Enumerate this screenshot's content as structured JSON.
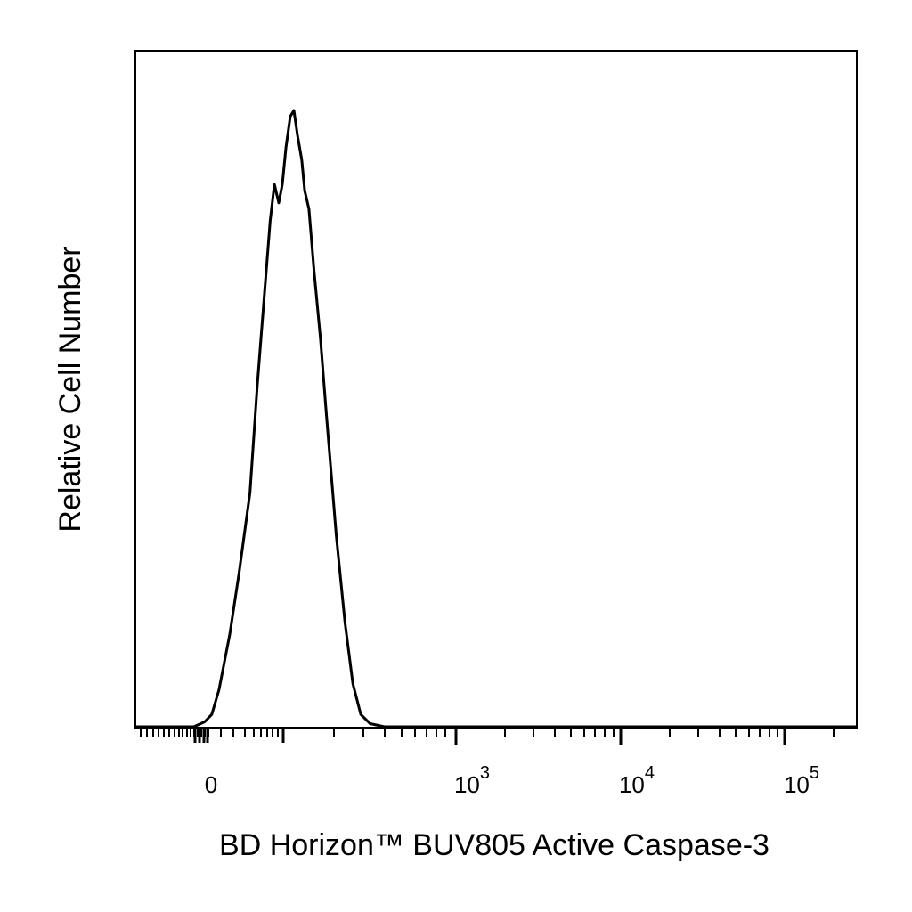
{
  "chart_data": {
    "type": "line",
    "xlabel": "BD Horizon™ BUV805  Active Caspase-3",
    "ylabel": "Relative Cell Number",
    "x_scale": "biexponential",
    "tick_labels": [
      {
        "base": "0",
        "exp": ""
      },
      {
        "base": "10",
        "exp": "3"
      },
      {
        "base": "10",
        "exp": "4"
      },
      {
        "base": "10",
        "exp": "5"
      }
    ],
    "grid": false,
    "legend": "none",
    "line_color": "#000000",
    "series": [
      {
        "note_units": "x in channel fraction of axis range (0-1), y as fraction of peak count",
        "points": [
          [
            0.0,
            0.0
          ],
          [
            0.08,
            0.0
          ],
          [
            0.095,
            0.008
          ],
          [
            0.105,
            0.02
          ],
          [
            0.115,
            0.06
          ],
          [
            0.13,
            0.15
          ],
          [
            0.143,
            0.25
          ],
          [
            0.158,
            0.38
          ],
          [
            0.168,
            0.55
          ],
          [
            0.178,
            0.7
          ],
          [
            0.186,
            0.82
          ],
          [
            0.192,
            0.88
          ],
          [
            0.198,
            0.85
          ],
          [
            0.203,
            0.88
          ],
          [
            0.208,
            0.94
          ],
          [
            0.214,
            0.99
          ],
          [
            0.219,
            1.0
          ],
          [
            0.224,
            0.96
          ],
          [
            0.23,
            0.92
          ],
          [
            0.234,
            0.87
          ],
          [
            0.24,
            0.84
          ],
          [
            0.247,
            0.74
          ],
          [
            0.256,
            0.63
          ],
          [
            0.264,
            0.51
          ],
          [
            0.278,
            0.31
          ],
          [
            0.29,
            0.17
          ],
          [
            0.301,
            0.07
          ],
          [
            0.312,
            0.02
          ],
          [
            0.325,
            0.005
          ],
          [
            0.345,
            0.0
          ],
          [
            1.0,
            0.0
          ]
        ]
      }
    ]
  }
}
